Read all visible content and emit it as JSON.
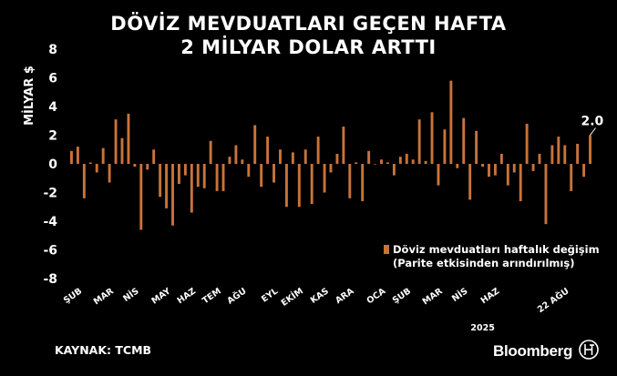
{
  "title": {
    "line1": "DÖVİZ MEVDUATLARI GEÇEN HAFTA",
    "line2": "2 MİLYAR DOLAR ARTTI"
  },
  "source": "KAYNAK: TCMB",
  "brand": "Bloomberg",
  "colors": {
    "background": "#000000",
    "bar": "#c8733a",
    "text": "#ffffff"
  },
  "chart_data": {
    "type": "bar",
    "ylabel": "MİLYAR $",
    "ylim": [
      -8,
      8
    ],
    "yticks": [
      8,
      6,
      4,
      2,
      0,
      -2,
      -4,
      -6,
      -8
    ],
    "x_tick_labels": [
      "ŞUB",
      "MAR",
      "NİS",
      "MAY",
      "HAZ",
      "TEM",
      "AĞU",
      "EYL",
      "EKİM",
      "KAS",
      "ARA",
      "OCA",
      "ŞUB",
      "MAR",
      "NİS",
      "HAZ",
      "22 AĞU"
    ],
    "x_tick_weeks": [
      1,
      6,
      10,
      15,
      19,
      23,
      27,
      32,
      36,
      40,
      44,
      49,
      53,
      58,
      62,
      67,
      78
    ],
    "year_label": "2025",
    "year_label_week": 65,
    "series": [
      {
        "name": "Döviz mevduatları haftalık değişim",
        "values": [
          0.9,
          1.2,
          -2.4,
          0.1,
          -0.6,
          1.1,
          -1.3,
          3.1,
          1.8,
          3.5,
          -0.2,
          -4.6,
          -0.4,
          1.0,
          -2.3,
          -3.1,
          -4.3,
          -1.4,
          -0.8,
          -3.4,
          -1.6,
          -1.7,
          1.6,
          -1.9,
          -1.9,
          0.5,
          1.3,
          0.3,
          -0.9,
          2.7,
          -1.6,
          1.9,
          -1.3,
          1.0,
          -3.0,
          0.8,
          -3.0,
          1.0,
          -2.8,
          1.9,
          -2.0,
          -0.6,
          0.7,
          2.6,
          -2.4,
          0.1,
          -2.6,
          0.9,
          0.0,
          0.3,
          0.1,
          -0.8,
          0.5,
          0.7,
          0.3,
          3.1,
          0.2,
          3.6,
          -1.5,
          2.4,
          5.8,
          -0.3,
          3.2,
          -2.5,
          2.3,
          -0.2,
          -0.9,
          -0.8,
          0.7,
          -1.5,
          -0.6,
          -2.6,
          2.8,
          -0.5,
          0.7,
          -4.2,
          1.3,
          1.9,
          1.3,
          -1.9,
          1.4,
          -0.9,
          2.0
        ]
      }
    ],
    "annotation": {
      "text": "2.0"
    },
    "legend": {
      "label": "Döviz mevduatları haftalık değişim",
      "sublabel": "(Parite etkisinden arındırılmış)",
      "placement": "lower-right"
    }
  }
}
